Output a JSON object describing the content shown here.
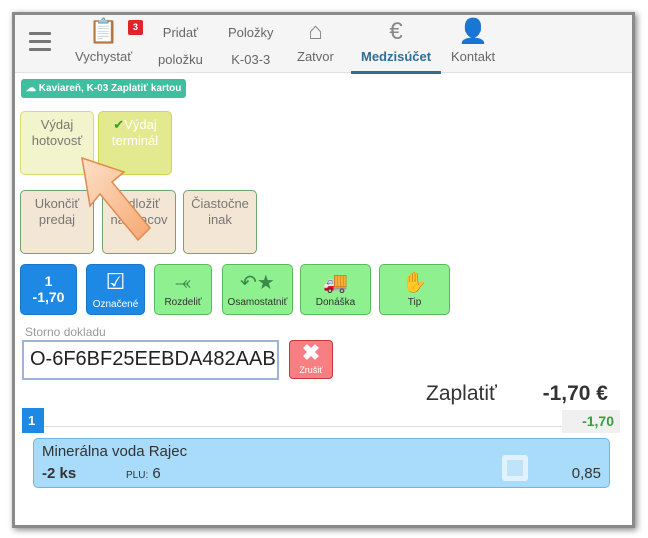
{
  "nav": {
    "badge": "3",
    "items": [
      {
        "label1": "",
        "label2": "Vychystať",
        "icon": "clipboard-check-icon"
      },
      {
        "label1": "Pridať",
        "label2": "položku"
      },
      {
        "label1": "Položky",
        "label2": "K-03-3"
      },
      {
        "label1": "",
        "label2": "Zatvor",
        "icon": "home-icon"
      },
      {
        "label1": "",
        "label2": "Medzisúčet",
        "icon": "euro-icon",
        "active": true
      },
      {
        "label1": "",
        "label2": "Kontakt",
        "icon": "add-user-icon"
      }
    ]
  },
  "tag": "Kaviareň, K-03 Zaplatiť kartou",
  "pay_buttons": [
    {
      "l1": "Výdaj",
      "l2": "hotovosť"
    },
    {
      "l1": "Výdaj",
      "l2": "terminál",
      "checked": true
    }
  ],
  "action_buttons": [
    {
      "l1": "Ukončiť",
      "l2": "predaj"
    },
    {
      "l1": "Odložiť",
      "l2": "na pracov"
    },
    {
      "l1": "Čiastočne",
      "l2": "inak"
    }
  ],
  "tools": {
    "count": "1",
    "amount": "-1,70",
    "marked": "Označené",
    "split": "Rozdeliť",
    "separate": "Osamostatniť",
    "delivery": "Donáška",
    "tip": "Tip"
  },
  "storno": {
    "label": "Storno dokladu",
    "value": "O-6F6BF25EEBDA482AAB",
    "cancel": "Zrušiť"
  },
  "total": {
    "label": "Zaplatiť",
    "amount": "-1,70 €"
  },
  "group": {
    "number": "1",
    "sum": "-1,70"
  },
  "item": {
    "name": "Minerálna voda Rajec",
    "qty": "-2 ks",
    "plu_label": "PLU:",
    "plu": "6",
    "price": "0,85"
  },
  "colors": {
    "accent": "#2f6f95",
    "blue": "#1e88e5",
    "green": "#8ef08e",
    "tag": "#3dbfa0"
  }
}
